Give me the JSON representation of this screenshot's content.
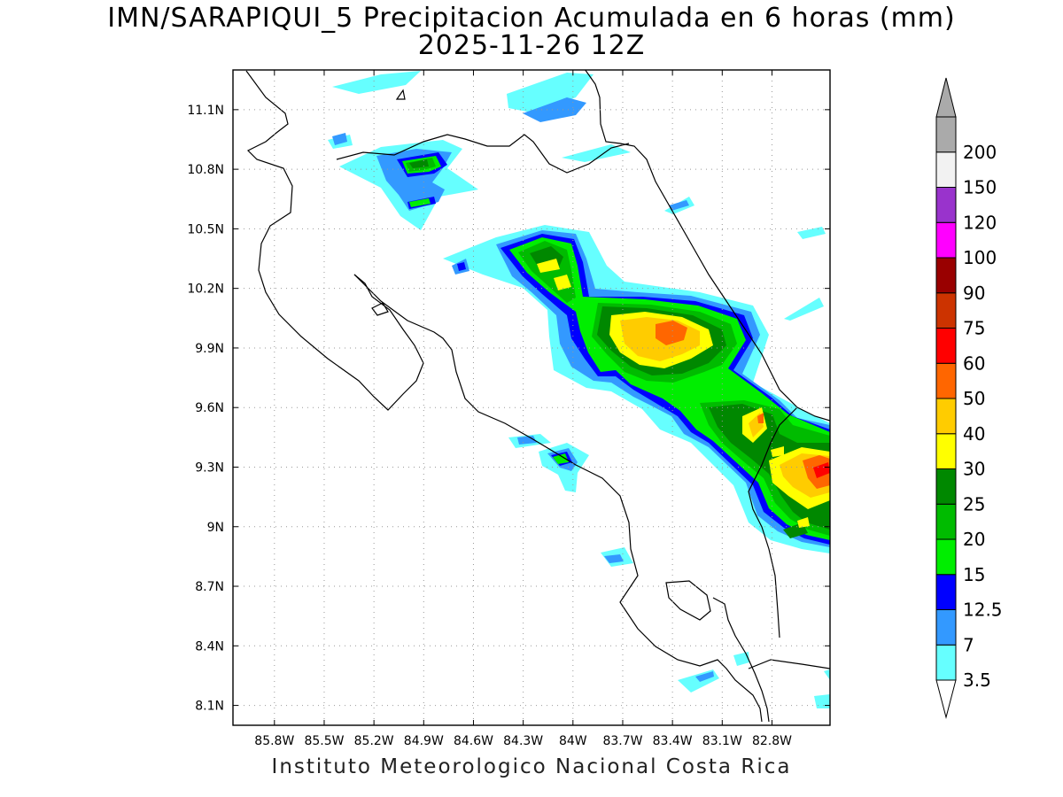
{
  "title_line1": "IMN/SARAPIQUI_5 Precipitacion Acumulada en 6 horas (mm)",
  "title_line2": "2025-11-26 12Z",
  "credit": "Instituto Meteorologico Nacional Costa Rica",
  "map": {
    "lon_range": [
      -86.05,
      -82.45
    ],
    "lat_range": [
      8.0,
      11.3
    ],
    "lon_ticks": [
      {
        "value": -85.8,
        "label": "85.8W"
      },
      {
        "value": -85.5,
        "label": "85.5W"
      },
      {
        "value": -85.2,
        "label": "85.2W"
      },
      {
        "value": -84.9,
        "label": "84.9W"
      },
      {
        "value": -84.6,
        "label": "84.6W"
      },
      {
        "value": -84.3,
        "label": "84.3W"
      },
      {
        "value": -84.0,
        "label": "84W"
      },
      {
        "value": -83.7,
        "label": "83.7W"
      },
      {
        "value": -83.4,
        "label": "83.4W"
      },
      {
        "value": -83.1,
        "label": "83.1W"
      },
      {
        "value": -82.8,
        "label": "82.8W"
      }
    ],
    "lat_ticks": [
      {
        "value": 11.1,
        "label": "11.1N"
      },
      {
        "value": 10.8,
        "label": "10.8N"
      },
      {
        "value": 10.5,
        "label": "10.5N"
      },
      {
        "value": 10.2,
        "label": "10.2N"
      },
      {
        "value": 9.9,
        "label": "9.9N"
      },
      {
        "value": 9.6,
        "label": "9.6N"
      },
      {
        "value": 9.3,
        "label": "9.3N"
      },
      {
        "value": 9.0,
        "label": "9N"
      },
      {
        "value": 8.7,
        "label": "8.7N"
      },
      {
        "value": 8.4,
        "label": "8.4N"
      },
      {
        "value": 8.1,
        "label": "8.1N"
      }
    ],
    "grid": true
  },
  "colorbar": {
    "levels": [
      "3.5",
      "7",
      "12.5",
      "15",
      "20",
      "25",
      "30",
      "40",
      "50",
      "60",
      "75",
      "90",
      "100",
      "120",
      "150",
      "200"
    ],
    "colors": [
      "#66ffff",
      "#3399ff",
      "#0000ff",
      "#00ee00",
      "#00bb00",
      "#008800",
      "#ffff00",
      "#ffcc00",
      "#ff6600",
      "#ff0000",
      "#cc3300",
      "#990000",
      "#ff00ff",
      "#9933cc",
      "#f2f2f2",
      "#aaaaaa"
    ],
    "min_arrow_color": "#ffffff",
    "max_arrow_color": "#aaaaaa"
  }
}
